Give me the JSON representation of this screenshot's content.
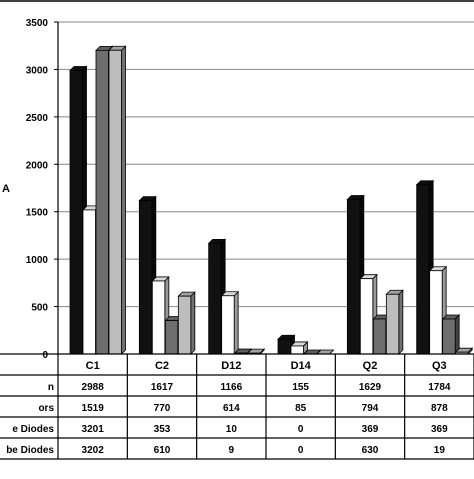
{
  "chart_data": {
    "type": "bar",
    "title": "",
    "xlabel": "",
    "ylabel": "A",
    "ylim": [
      0,
      3500
    ],
    "y_ticks": [
      "0",
      "500",
      "1000",
      "1500",
      "2000",
      "2500",
      "3000",
      "3500"
    ],
    "grid": true,
    "categories": [
      "C1",
      "C2",
      "D12",
      "D14",
      "Q2",
      "Q3"
    ],
    "series": [
      {
        "name": "n",
        "color": "#111111",
        "values": [
          2988,
          1617,
          1166,
          155,
          1629,
          1784
        ],
        "labels": [
          "2988",
          "1617",
          "1166",
          "155",
          "1629",
          "1784"
        ]
      },
      {
        "name": "ors",
        "color": "#ffffff",
        "values": [
          1519,
          770,
          614,
          85,
          794,
          878
        ],
        "labels": [
          "1519",
          "770",
          "614",
          "85",
          "794",
          "878"
        ]
      },
      {
        "name": "e Diodes",
        "color": "#6e6e6e",
        "values": [
          3201,
          353,
          10,
          0,
          369,
          369
        ],
        "labels": [
          "3201",
          "353",
          "10",
          "0",
          "369",
          "369"
        ]
      },
      {
        "name": "be Diodes",
        "color": "#bdbdbd",
        "values": [
          3202,
          610,
          9,
          0,
          630,
          19
        ],
        "labels": [
          "3202",
          "610",
          "9",
          "0",
          "630",
          "19"
        ]
      }
    ]
  }
}
